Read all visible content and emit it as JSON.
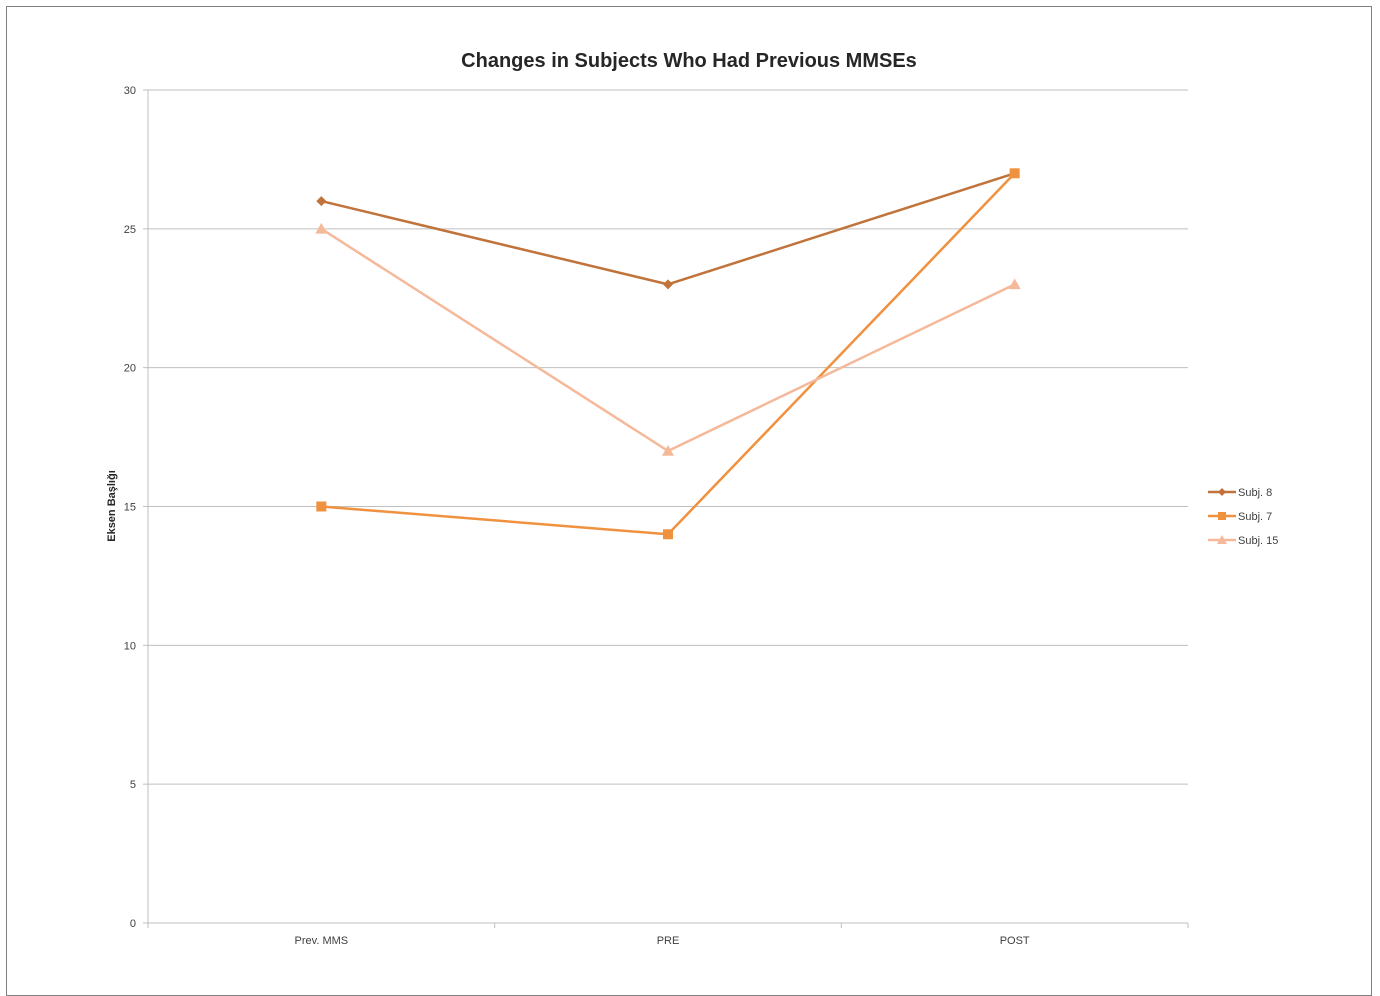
{
  "chart_data": {
    "type": "line",
    "title": "Changes in Subjects Who Had Previous MMSEs",
    "xlabel": "",
    "ylabel": "Eksen Başlığı",
    "categories": [
      "Prev. MMS",
      "PRE",
      "POST"
    ],
    "ylim": [
      0,
      30
    ],
    "yticks": [
      "0",
      "5",
      "10",
      "15",
      "20",
      "25",
      "30"
    ],
    "grid": true,
    "legend_position": "right",
    "series": [
      {
        "name": "Subj. 8",
        "values": [
          26,
          23,
          27
        ],
        "color": "#c0733a",
        "marker": "diamond"
      },
      {
        "name": "Subj. 7",
        "values": [
          15,
          14,
          27
        ],
        "color": "#f0913f",
        "marker": "square"
      },
      {
        "name": "Subj. 15",
        "values": [
          25,
          17,
          23
        ],
        "color": "#f5b99a",
        "marker": "triangle"
      }
    ]
  }
}
